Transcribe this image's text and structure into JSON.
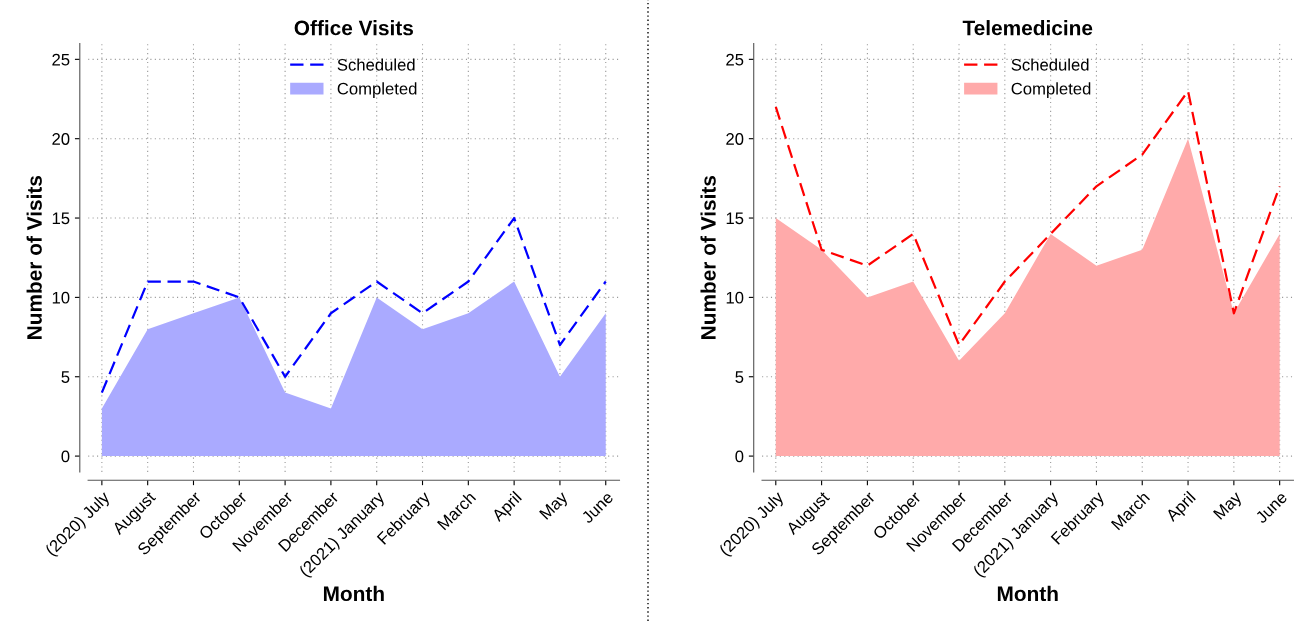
{
  "chart_data": [
    {
      "type": "area",
      "title": "Office Visits",
      "xlabel": "Month",
      "ylabel": "Number of Visits",
      "categories": [
        "(2020) July",
        "August",
        "September",
        "October",
        "November",
        "December",
        "(2021) January",
        "February",
        "March",
        "April",
        "May",
        "June"
      ],
      "series": [
        {
          "name": "Scheduled",
          "type": "line",
          "line_style": "dashed",
          "color": "#0000ff",
          "values": [
            4,
            11,
            11,
            10,
            5,
            9,
            11,
            9,
            11,
            15,
            7,
            11
          ]
        },
        {
          "name": "Completed",
          "color": "#aaaaff",
          "values": [
            3,
            8,
            9,
            10,
            4,
            3,
            10,
            8,
            9,
            11,
            5,
            9
          ]
        }
      ],
      "ylim": [
        -1,
        26
      ],
      "yticks": [
        0,
        5,
        10,
        15,
        20,
        25
      ],
      "grid": true,
      "legend": "top"
    },
    {
      "type": "area",
      "title": "Telemedicine",
      "xlabel": "Month",
      "ylabel": "Number of Visits",
      "categories": [
        "(2020) July",
        "August",
        "September",
        "October",
        "November",
        "December",
        "(2021) January",
        "February",
        "March",
        "April",
        "May",
        "June"
      ],
      "series": [
        {
          "name": "Scheduled",
          "type": "line",
          "line_style": "dashed",
          "color": "#ff0000",
          "values": [
            22,
            13,
            12,
            14,
            7,
            11,
            14,
            17,
            19,
            23,
            9,
            17
          ]
        },
        {
          "name": "Completed",
          "color": "#ffaaaa",
          "values": [
            15,
            13,
            10,
            11,
            6,
            9,
            14,
            12,
            13,
            20,
            9,
            14
          ]
        }
      ],
      "ylim": [
        -1,
        26
      ],
      "yticks": [
        0,
        5,
        10,
        15,
        20,
        25
      ],
      "grid": true,
      "legend": "top"
    }
  ]
}
